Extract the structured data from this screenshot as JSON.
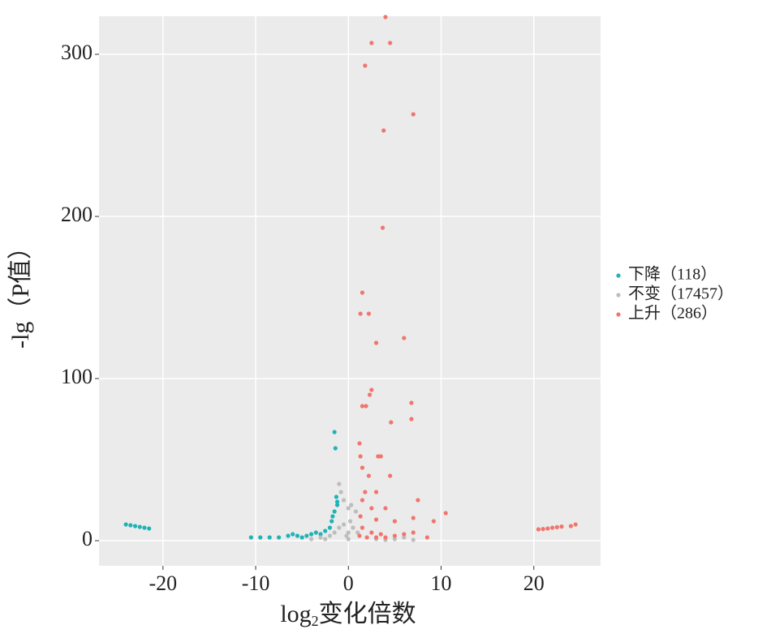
{
  "chart_data": {
    "type": "scatter",
    "xlabel": {
      "base": "log",
      "sub": "2",
      "rest": "变化倍数"
    },
    "ylabel": "-lg（P值）",
    "xlim": [
      -26.9,
      27.2
    ],
    "xticks": [
      -20,
      -10,
      0,
      10,
      20
    ],
    "ylim": [
      -15.5,
      323.5
    ],
    "yticks": [
      0,
      100,
      200,
      300
    ],
    "grid": true,
    "legend": "right",
    "series": [
      {
        "name": "下降（118）",
        "color": "#1fb3b5",
        "x": [
          -24,
          -23.5,
          -23,
          -22.5,
          -22,
          -21.5,
          -10.5,
          -9.5,
          -8.5,
          -7.5,
          -6.5,
          -6,
          -5.5,
          -5,
          -4.5,
          -4,
          -3.5,
          -3,
          -2.5,
          -2,
          -1.8,
          -1.5,
          -1.3,
          -1.2,
          -1.4,
          -1.5,
          -1.2,
          -1.7
        ],
        "values": [
          10,
          9.5,
          9,
          8.5,
          8,
          7.5,
          2,
          2,
          2,
          2,
          3,
          4,
          3,
          2,
          3,
          4,
          5,
          4,
          6,
          8,
          12,
          18,
          27,
          22,
          57,
          67,
          24,
          15
        ]
      },
      {
        "name": "不变（17457）",
        "color": "#bdbdbd",
        "x": [
          -1,
          -0.8,
          -0.5,
          0,
          0.3,
          0.8,
          -2,
          -1.5,
          -1,
          -0.5,
          0,
          0.5,
          1,
          -3,
          -2.5,
          3,
          5,
          6,
          7,
          0,
          -0.2,
          0.2,
          -4,
          4
        ],
        "values": [
          35,
          30,
          25,
          20,
          22,
          18,
          3,
          5,
          8,
          10,
          5,
          8,
          5,
          2,
          1,
          1,
          1,
          2,
          0.5,
          1,
          3,
          12,
          1,
          0.5
        ]
      },
      {
        "name": "上升（286）",
        "color": "#f0766d",
        "x": [
          4,
          2.5,
          4.5,
          1.8,
          7,
          3.8,
          3.7,
          1.5,
          1.3,
          2.2,
          6,
          3,
          2.5,
          2.3,
          1.5,
          1.9,
          6.8,
          6.8,
          4.6,
          1.2,
          1.3,
          3.2,
          3.5,
          1.5,
          2.2,
          4.5,
          1.8,
          3,
          1.5,
          2.5,
          4,
          7.5,
          1.3,
          3,
          5,
          7,
          10.5,
          9.2,
          1.5,
          2.5,
          3.5,
          5,
          6,
          7,
          8.5,
          1.2,
          2,
          3,
          4,
          20.5,
          21,
          21.5,
          22,
          22.5,
          23,
          24,
          24.5
        ],
        "values": [
          323,
          307,
          307,
          293,
          263,
          253,
          193,
          153,
          140,
          140,
          125,
          122,
          93,
          90,
          83,
          83,
          85,
          75,
          73,
          60,
          52,
          52,
          52,
          45,
          40,
          40,
          30,
          30,
          25,
          20,
          20,
          25,
          15,
          13,
          12,
          14,
          17,
          12,
          8,
          5,
          4,
          3,
          4,
          5,
          2,
          3,
          2,
          2,
          2,
          7,
          7.2,
          7.5,
          8,
          8.3,
          8.7,
          9,
          10
        ]
      }
    ]
  }
}
